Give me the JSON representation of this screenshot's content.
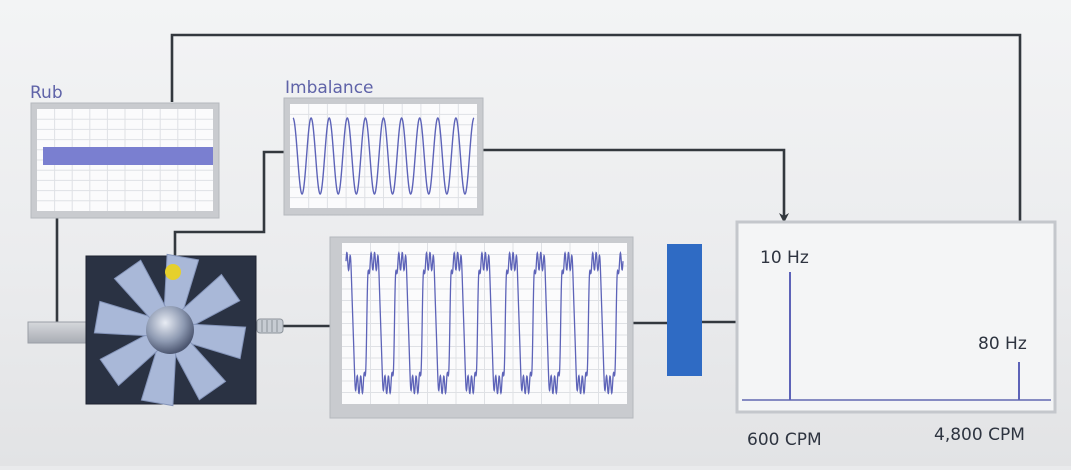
{
  "rub": {
    "label": "Rub"
  },
  "imbalance": {
    "label": "Imbalance"
  },
  "spectrum": {
    "peak_low_label": "10 Hz",
    "peak_high_label": "80 Hz",
    "x_low_label": "600 CPM",
    "x_high_label": "4,800 CPM"
  },
  "colors": {
    "signal": "#5d63b8",
    "rub_band": "#7a7fd0",
    "filter_block": "#2f6bc4",
    "machine_body": "#2a3243",
    "fan_blade": "#a9b8d8",
    "marker_dot": "#e6d02c",
    "connector": "#33383e"
  },
  "icons": {
    "machine": "fan-rotor-icon",
    "filter": "filter-block-icon"
  }
}
